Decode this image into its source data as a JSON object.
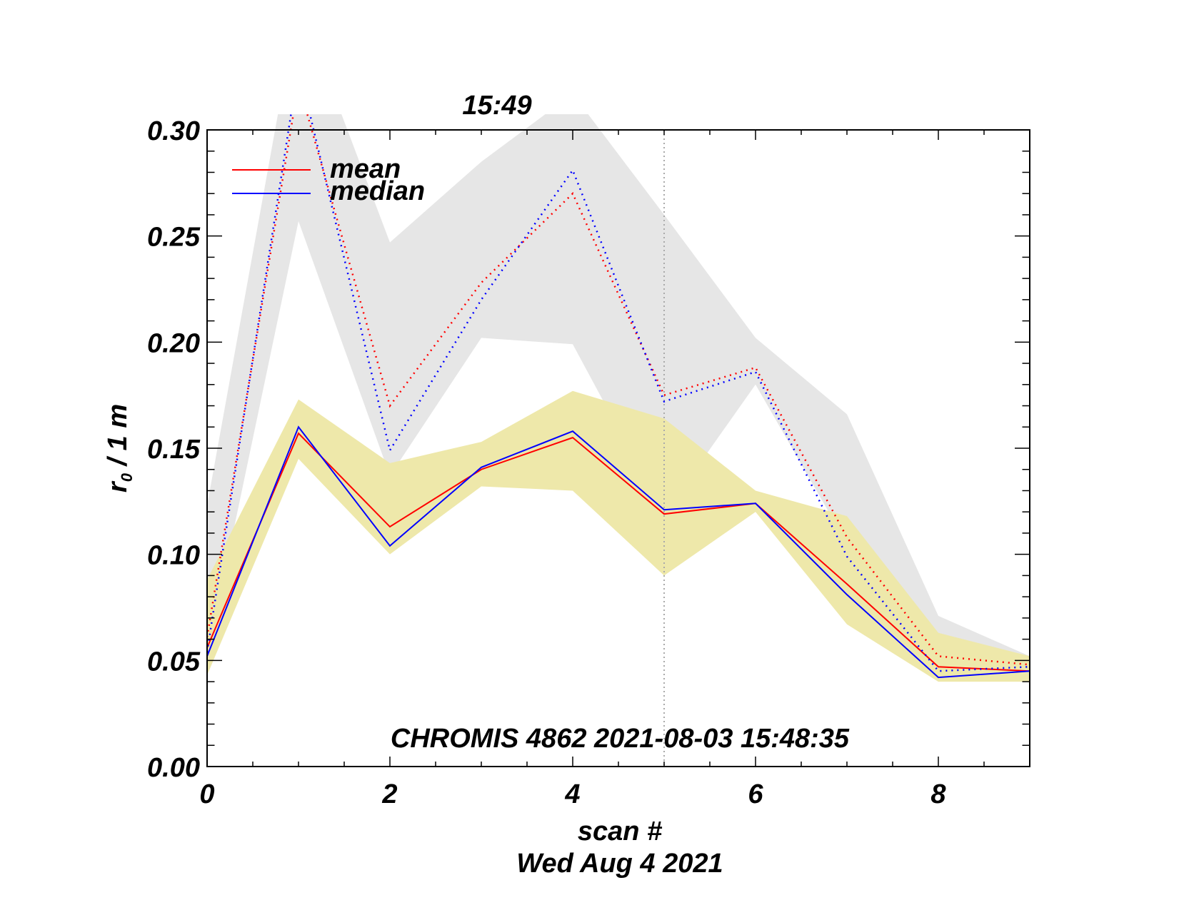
{
  "chart_data": {
    "type": "line",
    "title": "15:49",
    "subtitle": "CHROMIS 4862 2021-08-03 15:48:35",
    "xlabel": "scan #",
    "xlabel2": "Wed Aug  4 2021",
    "ylabel_main": "r",
    "ylabel_sub": "0",
    "ylabel_rest": " / 1 m",
    "xlim": [
      0,
      9
    ],
    "ylim": [
      0,
      0.3
    ],
    "x": [
      0,
      1,
      2,
      3,
      4,
      5,
      6,
      7,
      8,
      9
    ],
    "xticks": [
      0,
      2,
      4,
      6,
      8
    ],
    "xtick_labels": [
      "0",
      "2",
      "4",
      "6",
      "8"
    ],
    "yticks": [
      0.0,
      0.05,
      0.1,
      0.15,
      0.2,
      0.25,
      0.3
    ],
    "ytick_labels": [
      "0.00",
      "0.05",
      "0.10",
      "0.15",
      "0.20",
      "0.25",
      "0.30"
    ],
    "marker_x": 5,
    "legend": [
      {
        "label": "mean",
        "color": "#ff0000"
      },
      {
        "label": "median",
        "color": "#0000ff"
      }
    ],
    "bands": [
      {
        "name": "high-band",
        "color": "#e6e6e6",
        "upper": [
          0.123,
          0.361,
          0.247,
          0.285,
          0.317,
          0.26,
          0.202,
          0.166,
          0.071,
          0.052
        ],
        "lower": [
          0.052,
          0.257,
          0.137,
          0.202,
          0.199,
          0.119,
          0.18,
          0.105,
          0.043,
          0.044
        ]
      },
      {
        "name": "low-band",
        "color": "#eee8aa",
        "upper": [
          0.088,
          0.173,
          0.143,
          0.153,
          0.177,
          0.164,
          0.13,
          0.118,
          0.063,
          0.052
        ],
        "lower": [
          0.043,
          0.145,
          0.1,
          0.132,
          0.13,
          0.09,
          0.12,
          0.067,
          0.04,
          0.04
        ]
      }
    ],
    "series": [
      {
        "name": "mean",
        "color": "#ff0000",
        "style": "solid",
        "values": [
          0.056,
          0.157,
          0.113,
          0.14,
          0.155,
          0.119,
          0.124,
          0.086,
          0.047,
          0.045
        ]
      },
      {
        "name": "median",
        "color": "#0000ff",
        "style": "solid",
        "values": [
          0.052,
          0.16,
          0.104,
          0.141,
          0.158,
          0.121,
          0.124,
          0.081,
          0.042,
          0.045
        ]
      },
      {
        "name": "mean-high",
        "color": "#ff0000",
        "style": "dotted",
        "values": [
          0.061,
          0.322,
          0.17,
          0.228,
          0.27,
          0.175,
          0.188,
          0.108,
          0.052,
          0.048
        ]
      },
      {
        "name": "median-high",
        "color": "#0000ff",
        "style": "dotted",
        "values": [
          0.054,
          0.33,
          0.149,
          0.22,
          0.281,
          0.172,
          0.186,
          0.099,
          0.045,
          0.047
        ]
      }
    ]
  }
}
